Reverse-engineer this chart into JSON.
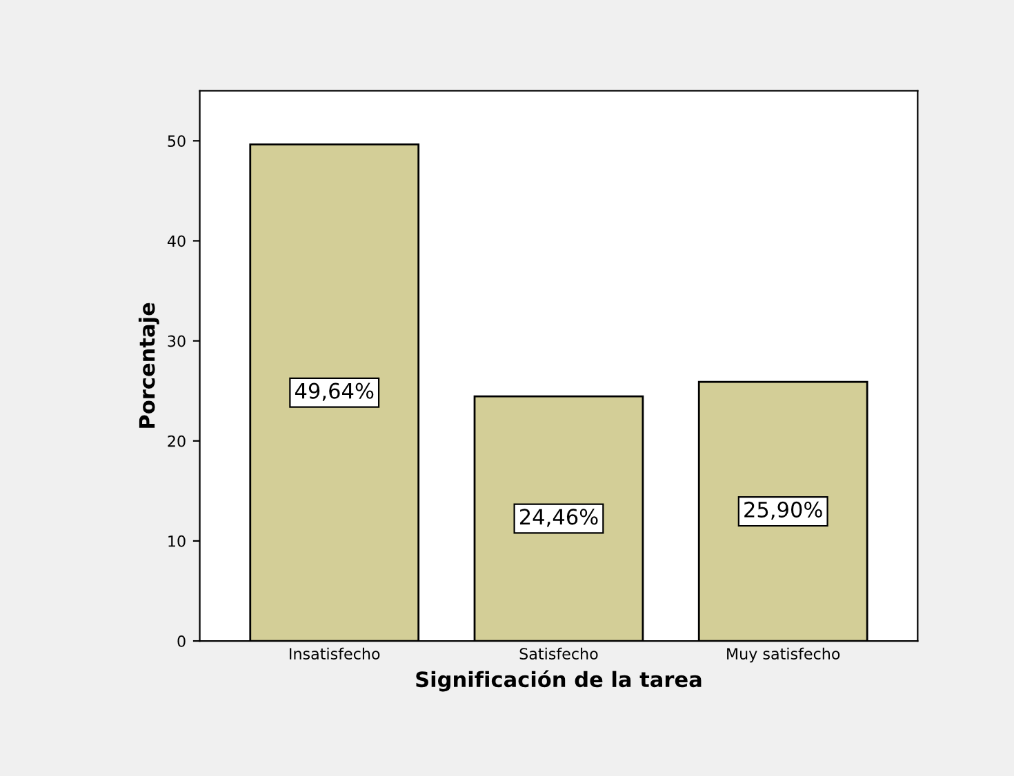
{
  "chart_data": {
    "type": "bar",
    "xlabel": "Significación de la tarea",
    "ylabel": "Porcentaje",
    "categories": [
      "Insatisfecho",
      "Satisfecho",
      "Muy satisfecho"
    ],
    "values": [
      49.64,
      24.46,
      25.9
    ],
    "value_labels": [
      "49,64%",
      "24,46%",
      "25,90%"
    ],
    "color": "#d3ce97",
    "ylim": [
      0,
      55
    ],
    "yticks": [
      0,
      10,
      20,
      30,
      40,
      50
    ],
    "grid": false,
    "legend": false
  }
}
